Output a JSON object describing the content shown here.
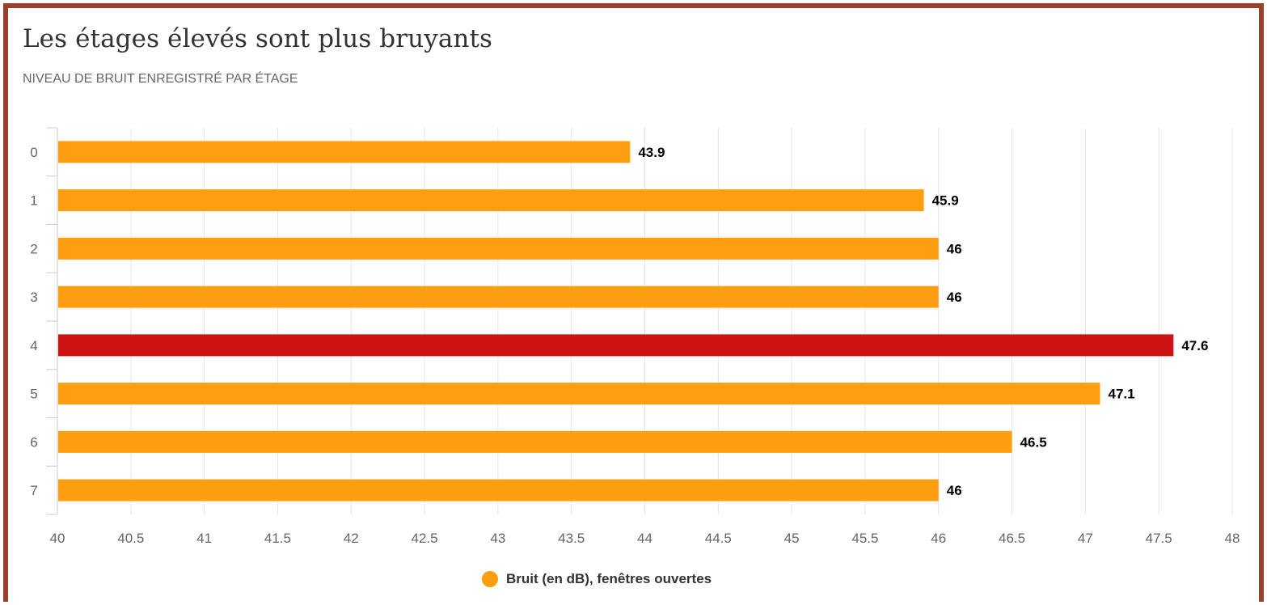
{
  "chart_data": {
    "type": "bar",
    "orientation": "horizontal",
    "title": "Les étages élevés sont plus bruyants",
    "subtitle": "NIVEAU DE BRUIT ENREGISTRÉ PAR ÉTAGE",
    "categories": [
      "0",
      "1",
      "2",
      "3",
      "4",
      "5",
      "6",
      "7"
    ],
    "series": [
      {
        "name": "Bruit (en dB), fenêtres ouvertes",
        "values": [
          43.9,
          45.9,
          46,
          46,
          47.6,
          47.1,
          46.5,
          46
        ],
        "data_labels": [
          "43.9",
          "45.9",
          "46",
          "46",
          "47.6",
          "47.1",
          "46.5",
          "46"
        ],
        "color": "#ff9f0f",
        "highlight": {
          "index": 4,
          "color": "#cc1414"
        }
      }
    ],
    "xlim": [
      40,
      48
    ],
    "xticks": [
      "40",
      "40.5",
      "41",
      "41.5",
      "42",
      "42.5",
      "43",
      "43.5",
      "44",
      "44.5",
      "45",
      "45.5",
      "46",
      "46.5",
      "47",
      "47.5",
      "48"
    ],
    "xlabel": "",
    "ylabel": "",
    "grid": "vertical",
    "legend": "bottom-center"
  },
  "colors": {
    "frame": "#9a3f2c",
    "bar": "#ff9f0f",
    "highlight": "#cc1414",
    "grid": "#e6e6e6",
    "axis_text": "#666666",
    "title": "#333333"
  }
}
